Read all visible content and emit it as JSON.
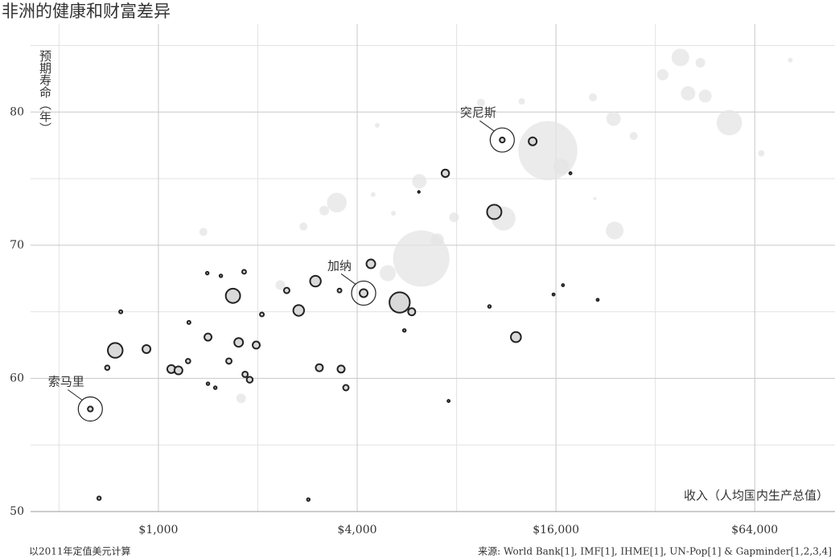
{
  "chart_data": {
    "type": "bubble",
    "title": "非洲的健康和财富差异",
    "y_label": "预期寿命（年）",
    "x_label": "收入（人均国内生产总值）",
    "note": "以2011年定值美元计算",
    "source": "来源: World Bank[1], IMF[1], IHME[1], UN-Pop[1] & Gapminder[1,2,3,4]",
    "xscale": "log",
    "xlim": [
      410,
      112000
    ],
    "ylim": [
      50,
      86.6
    ],
    "xticks": [
      {
        "value": 1000,
        "label": "$1,000"
      },
      {
        "value": 4000,
        "label": "$4,000"
      },
      {
        "value": 16000,
        "label": "$16,000"
      },
      {
        "value": 64000,
        "label": "$64,000"
      }
    ],
    "xminor": [
      500,
      2000,
      8000,
      32000
    ],
    "yticks": [
      50,
      60,
      70,
      80
    ],
    "yminor": [
      55,
      65,
      75,
      85
    ],
    "grid": true,
    "series": [
      {
        "color": "#e4e4e4",
        "stroke": "none",
        "opacity": 0.75,
        "x": [
          15120,
          6254,
          3470,
          6170,
          4950,
          11100,
          53600,
          38100,
          40200,
          45300,
          33700,
          23900,
          24100,
          16600,
          7000,
          7860,
          1368,
          1780,
          2340,
          2750,
          3180,
          9480,
          20700,
          27500,
          43800,
          12600,
          4600,
          82000,
          67000,
          21000,
          5150,
          4470
        ],
        "values": [
          77.1,
          69.0,
          73.2,
          74.8,
          67.9,
          72.0,
          79.2,
          84.1,
          81.4,
          81.2,
          82.8,
          79.5,
          71.1,
          75.9,
          70.4,
          72.1,
          71.0,
          58.5,
          67.0,
          71.4,
          72.6,
          80.7,
          81.1,
          78.2,
          83.7,
          80.8,
          79.0,
          83.9,
          76.9,
          73.5,
          72.4,
          73.8
        ],
        "sizes": [
          1350,
          1225,
          150,
          80,
          100,
          220,
          250,
          120,
          80,
          64,
          50,
          80,
          120,
          100,
          64,
          36,
          25,
          36,
          36,
          25,
          36,
          25,
          25,
          25,
          36,
          16,
          9,
          9,
          16,
          4,
          9,
          9
        ]
      },
      {
        "color": "#d9d9d9",
        "stroke": "#222222",
        "opacity": 1,
        "x": [
          622,
          661,
          740,
          769,
          700,
          920,
          1094,
          1150,
          1237,
          1230,
          1413,
          1406,
          1546,
          1682,
          1750,
          1635,
          1413,
          1487,
          1818,
          1830,
          1890,
          1978,
          2058,
          2447,
          2660,
          2990,
          3072,
          2845,
          3536,
          3575,
          3697,
          4184,
          4400,
          5378,
          5557,
          5851,
          7396,
          7566,
          10404,
          10062,
          11000,
          12100,
          13600,
          15730,
          16800,
          17700,
          21400,
          6150
        ],
        "values": [
          57.7,
          51.0,
          62.1,
          65.0,
          60.8,
          62.2,
          60.7,
          60.6,
          64.2,
          61.3,
          63.1,
          67.9,
          67.7,
          66.2,
          62.7,
          61.3,
          59.6,
          59.3,
          68.0,
          60.3,
          59.9,
          62.5,
          64.8,
          66.6,
          65.1,
          67.3,
          60.8,
          50.9,
          66.6,
          60.7,
          59.3,
          66.4,
          68.6,
          65.7,
          63.6,
          65.0,
          75.4,
          58.3,
          72.5,
          65.4,
          77.9,
          63.1,
          77.8,
          66.3,
          67.0,
          75.4,
          65.9,
          74.0
        ],
        "sizes": [
          10,
          5,
          85,
          4,
          8,
          25,
          25,
          25,
          4,
          8,
          20,
          3,
          3,
          80,
          30,
          12,
          3,
          3,
          6,
          12,
          14,
          20,
          6,
          12,
          45,
          45,
          20,
          3,
          6,
          20,
          12,
          25,
          30,
          160,
          3,
          20,
          22,
          2,
          80,
          3,
          10,
          40,
          25,
          2,
          2,
          2,
          2,
          1
        ],
        "labels": [
          "索马里",
          null,
          null,
          null,
          null,
          null,
          null,
          null,
          null,
          null,
          null,
          null,
          null,
          null,
          null,
          null,
          null,
          null,
          null,
          null,
          null,
          null,
          null,
          null,
          null,
          null,
          null,
          null,
          null,
          null,
          null,
          "加纳",
          null,
          null,
          null,
          null,
          null,
          null,
          null,
          null,
          "突尼斯",
          null,
          null,
          null,
          null,
          null,
          null,
          null
        ]
      }
    ]
  }
}
